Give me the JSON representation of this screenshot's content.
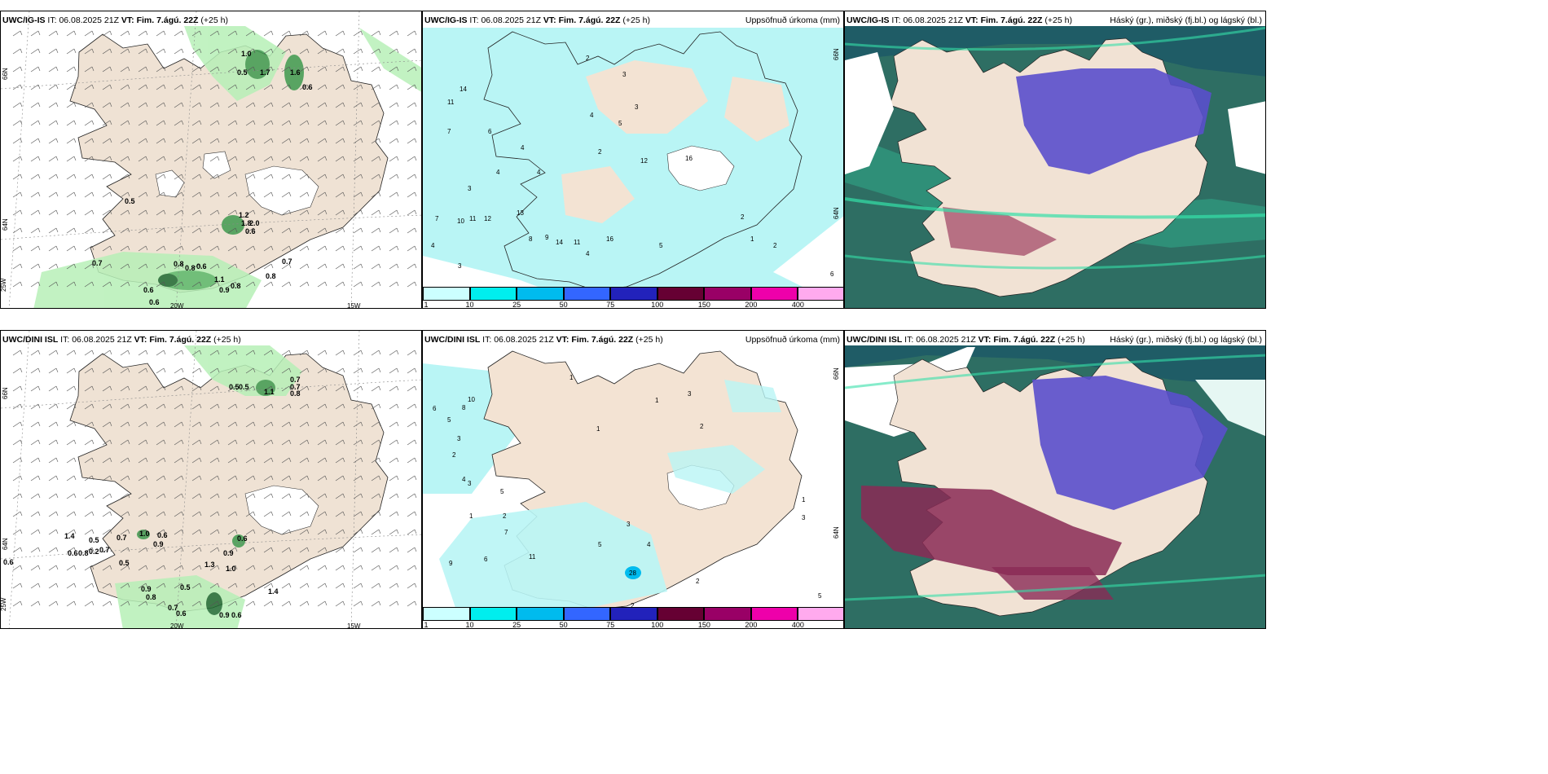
{
  "panels": {
    "ig_wind": {
      "model": "UWC/IG-IS",
      "it_label": "IT:",
      "it": "06.08.2025 21Z",
      "vt_label": "VT:",
      "vt": "Fim. 7.ágú. 22Z",
      "lead": "(+25 h)",
      "right": ""
    },
    "ig_precip": {
      "model": "UWC/IG-IS",
      "it_label": "IT:",
      "it": "06.08.2025 21Z",
      "vt_label": "VT:",
      "vt": "Fim. 7.ágú. 22Z",
      "lead": "(+25 h)",
      "right": "Uppsöfnuð úrkoma (mm)"
    },
    "ig_cloud": {
      "model": "UWC/IG-IS",
      "it_label": "IT:",
      "it": "06.08.2025 21Z",
      "vt_label": "VT:",
      "vt": "Fim. 7.ágú. 22Z",
      "lead": "(+25 h)",
      "right": "Háský (gr.), miðský (fj.bl.) og lágský (bl.)"
    },
    "dini_wind": {
      "model": "UWC/DINI ISL",
      "it_label": "IT:",
      "it": "06.08.2025 21Z",
      "vt_label": "VT:",
      "vt": "Fim. 7.ágú. 22Z",
      "lead": "(+25 h)",
      "right": ""
    },
    "dini_precip": {
      "model": "UWC/DINI ISL",
      "it_label": "IT:",
      "it": "06.08.2025 21Z",
      "vt_label": "VT:",
      "vt": "Fim. 7.ágú. 22Z",
      "lead": "(+25 h)",
      "right": "Uppsöfnuð úrkoma (mm)"
    },
    "dini_cloud": {
      "model": "UWC/DINI ISL",
      "it_label": "IT:",
      "it": "06.08.2025 21Z",
      "vt_label": "VT:",
      "vt": "Fim. 7.ágú. 22Z",
      "lead": "(+25 h)",
      "right": "Háský (gr.), miðský (fj.bl.) og lágský (bl.)"
    }
  },
  "grid_labels": {
    "lat66": "66N",
    "lat64": "64N",
    "lon25": "25W",
    "lon20": "20W",
    "lon15": "15W"
  },
  "colorbar": {
    "ticks": [
      "1",
      "10",
      "25",
      "50",
      "75",
      "100",
      "150",
      "200",
      "400"
    ],
    "colors": [
      "#ccffff",
      "#00eeee",
      "#00bbee",
      "#3366ff",
      "#2222bb",
      "#660033",
      "#990066",
      "#ee00aa",
      "#ffaaee"
    ]
  },
  "ig_wind_values": [
    "1.0",
    "0.5",
    "1.7",
    "1.6",
    "0.6",
    "0.5",
    "1.2",
    "1.8",
    "2.0",
    "0.6",
    "0.7",
    "0.8",
    "0.7",
    "0.8",
    "1.1",
    "0.8",
    "0.9",
    "0.6",
    "0.6",
    "0.6",
    "0.8"
  ],
  "dini_wind_values": [
    "0.5",
    "0.5",
    "0.7",
    "0.7",
    "0.8",
    "1.1",
    "1.4",
    "0.5",
    "0.7",
    "1.0",
    "0.6",
    "0.9",
    "0.6",
    "0.6",
    "0.8",
    "0.2",
    "0.7",
    "0.5",
    "0.9",
    "1.3",
    "1.0",
    "0.9",
    "0.8",
    "0.7",
    "0.6",
    "0.5",
    "1.4",
    "0.9",
    "0.6",
    "0.6"
  ],
  "ig_precip_values": [
    "2",
    "3",
    "14",
    "11",
    "7",
    "6",
    "4",
    "4",
    "3",
    "5",
    "2",
    "3",
    "4",
    "4",
    "12",
    "16",
    "13",
    "10",
    "11",
    "12",
    "7",
    "4",
    "3",
    "2",
    "2",
    "1",
    "5",
    "6",
    "9",
    "8",
    "11",
    "14",
    "16",
    "4"
  ],
  "dini_precip_values": [
    "10",
    "8",
    "6",
    "5",
    "3",
    "2",
    "1",
    "4",
    "3",
    "5",
    "1",
    "2",
    "9",
    "6",
    "11",
    "7",
    "5",
    "4",
    "3",
    "28",
    "2",
    "1",
    "3",
    "2",
    "5",
    "3",
    "1",
    "2",
    "1"
  ]
}
